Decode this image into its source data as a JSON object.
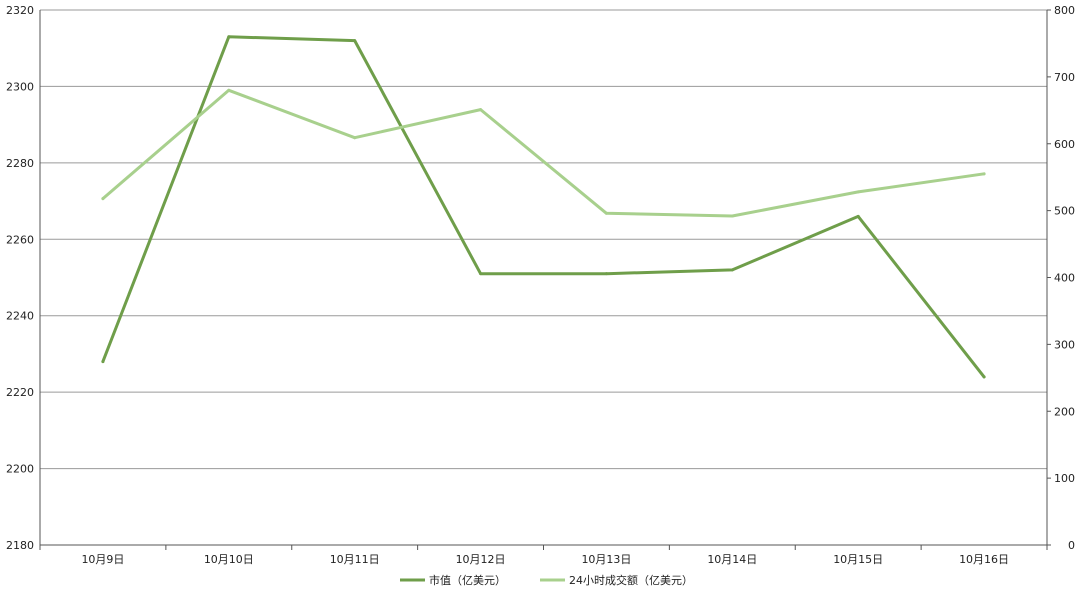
{
  "chart_data": {
    "type": "line",
    "categories": [
      "10月9日",
      "10月10日",
      "10月11日",
      "10月12日",
      "10月13日",
      "10月14日",
      "10月15日",
      "10月16日"
    ],
    "series": [
      {
        "name": "市值（亿美元）",
        "axis": "left",
        "color": "#6f9e4a",
        "values": [
          2228,
          2313,
          2312,
          2251,
          2251,
          2252,
          2266,
          2224
        ]
      },
      {
        "name": "24小时成交额（亿美元）",
        "axis": "right",
        "color": "#a8d08d",
        "values": [
          518,
          680,
          609,
          651,
          496,
          492,
          528,
          555
        ]
      }
    ],
    "y_left": {
      "ylim": [
        2180,
        2320
      ],
      "ticks": [
        2180,
        2200,
        2220,
        2240,
        2260,
        2280,
        2300,
        2320
      ]
    },
    "y_right": {
      "ylim": [
        0,
        800
      ],
      "ticks": [
        0,
        100,
        200,
        300,
        400,
        500,
        600,
        700,
        800
      ]
    },
    "grid": true,
    "legend_position": "bottom"
  }
}
